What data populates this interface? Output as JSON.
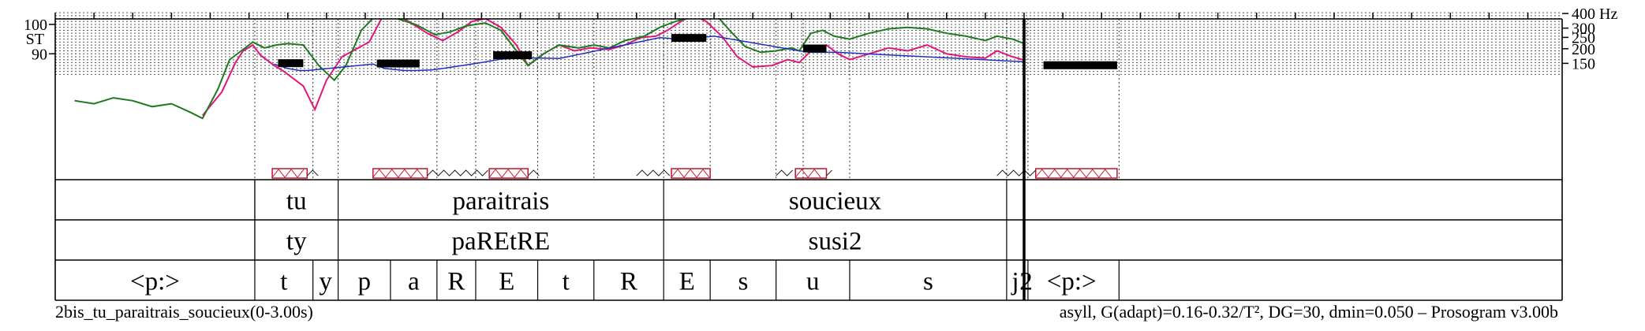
{
  "chart_data": {
    "type": "line",
    "title": "",
    "x_range_s": [
      0,
      3.0
    ],
    "y_left": {
      "unit": "ST",
      "ticks": [
        90,
        100
      ],
      "range_st": [
        80.8,
        104.4
      ]
    },
    "y_right": {
      "unit": "Hz",
      "ticks": [
        150,
        200,
        250,
        300,
        400
      ]
    },
    "grid": "dotted horizontal semitone lines, dotted vertical segment boundaries",
    "series": [
      {
        "color": "#e0177a",
        "points": [
          [
            0.76,
            69
          ],
          [
            0.86,
            77
          ],
          [
            0.93,
            87
          ],
          [
            0.97,
            91
          ],
          [
            1.02,
            93
          ],
          [
            1.06,
            89.5
          ],
          [
            1.13,
            86
          ],
          [
            1.18,
            84
          ],
          [
            1.28,
            79
          ],
          [
            1.34,
            71
          ],
          [
            1.4,
            81
          ],
          [
            1.48,
            89
          ],
          [
            1.62,
            94
          ],
          [
            1.7,
            104
          ],
          [
            1.8,
            102
          ],
          [
            1.92,
            97
          ],
          [
            2.0,
            94.5
          ],
          [
            2.08,
            97.5
          ],
          [
            2.15,
            101
          ],
          [
            2.22,
            102
          ],
          [
            2.3,
            99
          ],
          [
            2.38,
            93
          ],
          [
            2.44,
            86
          ],
          [
            2.52,
            90
          ],
          [
            2.6,
            93
          ],
          [
            2.68,
            91
          ],
          [
            2.76,
            92
          ],
          [
            2.86,
            91.5
          ],
          [
            2.94,
            93
          ],
          [
            3.02,
            95.5
          ],
          [
            3.1,
            96
          ],
          [
            3.16,
            98
          ],
          [
            3.24,
            101.5
          ],
          [
            3.3,
            103
          ],
          [
            3.36,
            101
          ],
          [
            3.44,
            96
          ],
          [
            3.52,
            89
          ],
          [
            3.6,
            85.5
          ],
          [
            3.7,
            86
          ],
          [
            3.78,
            88
          ],
          [
            3.84,
            87
          ],
          [
            3.9,
            91
          ],
          [
            3.98,
            93
          ],
          [
            4.04,
            90
          ],
          [
            4.1,
            88
          ],
          [
            4.2,
            90
          ],
          [
            4.3,
            92
          ],
          [
            4.4,
            91
          ],
          [
            4.5,
            93
          ],
          [
            4.6,
            90
          ],
          [
            4.7,
            89
          ],
          [
            4.8,
            88.5
          ],
          [
            4.86,
            91
          ],
          [
            4.94,
            89
          ],
          [
            5.02,
            87.5
          ],
          [
            5.1,
            91
          ],
          [
            5.2,
            94
          ],
          [
            5.3,
            95
          ],
          [
            5.4,
            93
          ],
          [
            5.5,
            90
          ],
          [
            5.58,
            85
          ],
          [
            5.65,
            70
          ],
          [
            5.72,
            65
          ],
          [
            5.8,
            63
          ],
          [
            5.9,
            67
          ],
          [
            5.97,
            66
          ],
          [
            6.0,
            63
          ],
          [
            6.1,
            63
          ],
          [
            6.2,
            63
          ],
          [
            6.3,
            63
          ],
          [
            6.4,
            63
          ],
          [
            6.5,
            63
          ],
          [
            6.6,
            63
          ]
        ]
      },
      {
        "color": "#1e7a1e",
        "points": [
          [
            0.1,
            74
          ],
          [
            0.2,
            73
          ],
          [
            0.3,
            75
          ],
          [
            0.4,
            74
          ],
          [
            0.5,
            72
          ],
          [
            0.6,
            73
          ],
          [
            0.7,
            70
          ],
          [
            0.76,
            68
          ],
          [
            0.84,
            78
          ],
          [
            0.9,
            88
          ],
          [
            0.96,
            91
          ],
          [
            1.02,
            94
          ],
          [
            1.08,
            92
          ],
          [
            1.14,
            93
          ],
          [
            1.2,
            93.5
          ],
          [
            1.28,
            93
          ],
          [
            1.36,
            86
          ],
          [
            1.44,
            81
          ],
          [
            1.5,
            86
          ],
          [
            1.58,
            98
          ],
          [
            1.66,
            103.5
          ],
          [
            1.74,
            102.5
          ],
          [
            1.86,
            100
          ],
          [
            1.96,
            96.5
          ],
          [
            2.04,
            97.5
          ],
          [
            2.12,
            99.5
          ],
          [
            2.22,
            100.5
          ],
          [
            2.3,
            98
          ],
          [
            2.38,
            91
          ],
          [
            2.44,
            86
          ],
          [
            2.52,
            90
          ],
          [
            2.6,
            93
          ],
          [
            2.7,
            92
          ],
          [
            2.78,
            93
          ],
          [
            2.86,
            92
          ],
          [
            2.94,
            94.5
          ],
          [
            3.04,
            96
          ],
          [
            3.12,
            99
          ],
          [
            3.2,
            101
          ],
          [
            3.28,
            102.5
          ],
          [
            3.36,
            103
          ],
          [
            3.42,
            102.5
          ],
          [
            3.48,
            98
          ],
          [
            3.56,
            92.5
          ],
          [
            3.64,
            90.5
          ],
          [
            3.72,
            91
          ],
          [
            3.8,
            92
          ],
          [
            3.84,
            91
          ],
          [
            3.9,
            97
          ],
          [
            3.96,
            98
          ],
          [
            4.02,
            96
          ],
          [
            4.1,
            95
          ],
          [
            4.2,
            97
          ],
          [
            4.3,
            98.5
          ],
          [
            4.4,
            99
          ],
          [
            4.5,
            98.5
          ],
          [
            4.6,
            97
          ],
          [
            4.7,
            96
          ],
          [
            4.8,
            94.5
          ],
          [
            4.86,
            96
          ],
          [
            4.94,
            95
          ],
          [
            5.02,
            93
          ],
          [
            5.08,
            98
          ],
          [
            5.14,
            100
          ],
          [
            5.24,
            99.5
          ],
          [
            5.34,
            97
          ],
          [
            5.44,
            90
          ],
          [
            5.52,
            85
          ],
          [
            5.6,
            79
          ],
          [
            5.68,
            76
          ],
          [
            5.76,
            72
          ],
          [
            5.84,
            70
          ],
          [
            5.9,
            69.5
          ],
          [
            5.96,
            71
          ],
          [
            6.0,
            70
          ],
          [
            6.06,
            74
          ],
          [
            6.12,
            75
          ],
          [
            6.18,
            73
          ],
          [
            6.24,
            70
          ],
          [
            6.3,
            69
          ],
          [
            6.4,
            68
          ],
          [
            6.5,
            67
          ],
          [
            6.6,
            67
          ],
          [
            6.7,
            70
          ],
          [
            6.8,
            68
          ]
        ]
      },
      {
        "color": "#1f2fbf",
        "points": [
          [
            1.13,
            86.5
          ],
          [
            1.2,
            85
          ],
          [
            1.26,
            84.3
          ],
          [
            1.3,
            84.3
          ],
          [
            1.64,
            86.5
          ],
          [
            1.7,
            85
          ],
          [
            1.8,
            84.3
          ],
          [
            1.86,
            84.3
          ],
          [
            1.94,
            84.5
          ],
          [
            2.0,
            85
          ],
          [
            2.1,
            86
          ],
          [
            2.2,
            87
          ],
          [
            2.3,
            88.2
          ],
          [
            2.42,
            88.6
          ],
          [
            2.52,
            88.5
          ],
          [
            2.6,
            88.4
          ],
          [
            3.12,
            95.5
          ],
          [
            3.22,
            95
          ],
          [
            3.32,
            95.5
          ],
          [
            3.4,
            96
          ],
          [
            3.84,
            91
          ],
          [
            3.9,
            90.5
          ],
          [
            3.98,
            90.5
          ],
          [
            4.04,
            90.5
          ],
          [
            5.08,
            87
          ],
          [
            5.16,
            86.5
          ],
          [
            5.24,
            86.5
          ],
          [
            5.32,
            86.5
          ],
          [
            5.4,
            86.5
          ],
          [
            5.52,
            86.5
          ]
        ]
      }
    ],
    "stylizations": [
      {
        "t0": 1.15,
        "t1": 1.28,
        "st": 86.8
      },
      {
        "t0": 1.66,
        "t1": 1.88,
        "st": 86.7
      },
      {
        "t0": 2.26,
        "t1": 2.46,
        "st": 89.5
      },
      {
        "t0": 3.18,
        "t1": 3.36,
        "st": 95.4
      },
      {
        "t0": 3.86,
        "t1": 3.98,
        "st": 91.8
      },
      {
        "t0": 5.1,
        "t1": 5.48,
        "st": 86.1
      }
    ],
    "boundaries": [
      1.03,
      1.33,
      1.46,
      1.97,
      2.17,
      2.49,
      2.78,
      3.14,
      3.38,
      3.72,
      3.86,
      4.1,
      4.91,
      5.02,
      5.49
    ],
    "nuclei": [
      [
        1.12,
        1.3
      ],
      [
        1.64,
        1.92
      ],
      [
        2.24,
        2.44
      ],
      [
        3.18,
        3.38
      ],
      [
        3.82,
        3.98
      ],
      [
        5.06,
        5.48
      ]
    ],
    "syllable_tier": [
      {
        "label": "tu",
        "t0": 1.03,
        "t1": 1.46
      },
      {
        "label": "paraitrais",
        "t0": 1.46,
        "t1": 3.14
      },
      {
        "label": "soucieux",
        "t0": 3.14,
        "t1": 4.91
      }
    ],
    "phonetic_tier": [
      {
        "label": "ty",
        "t0": 1.03,
        "t1": 1.46
      },
      {
        "label": "paREtRE",
        "t0": 1.46,
        "t1": 3.14
      },
      {
        "label": "susi2",
        "t0": 3.14,
        "t1": 4.91
      }
    ],
    "phone_tier": [
      {
        "label": "<p:>",
        "t0": 0.0,
        "t1": 1.03
      },
      {
        "label": "t",
        "t0": 1.03,
        "t1": 1.33
      },
      {
        "label": "y",
        "t0": 1.33,
        "t1": 1.46
      },
      {
        "label": "p",
        "t0": 1.46,
        "t1": 1.73
      },
      {
        "label": "a",
        "t0": 1.73,
        "t1": 1.97
      },
      {
        "label": "R",
        "t0": 1.97,
        "t1": 2.17
      },
      {
        "label": "E",
        "t0": 2.17,
        "t1": 2.49
      },
      {
        "label": "t",
        "t0": 2.49,
        "t1": 2.78
      },
      {
        "label": "R",
        "t0": 2.78,
        "t1": 3.14
      },
      {
        "label": "E",
        "t0": 3.14,
        "t1": 3.38
      },
      {
        "label": "s",
        "t0": 3.38,
        "t1": 3.72
      },
      {
        "label": "u",
        "t0": 3.72,
        "t1": 4.1
      },
      {
        "label": "s",
        "t0": 4.1,
        "t1": 4.91
      },
      {
        "label": "j",
        "t0": 4.91,
        "t1": 5.02
      },
      {
        "label": "2",
        "t0": 5.02,
        "t1": 5.49
      },
      {
        "label": "<p:>",
        "t0": 5.49,
        "t1": 6.5
      }
    ]
  },
  "footer": {
    "left": "2bis_tu_paraitrais_soucieux(0-3.00s)",
    "right": "asyll, G(adapt)=0.16-0.32/T², DG=30, dmin=0.050 – Prosogram v3.00b"
  }
}
